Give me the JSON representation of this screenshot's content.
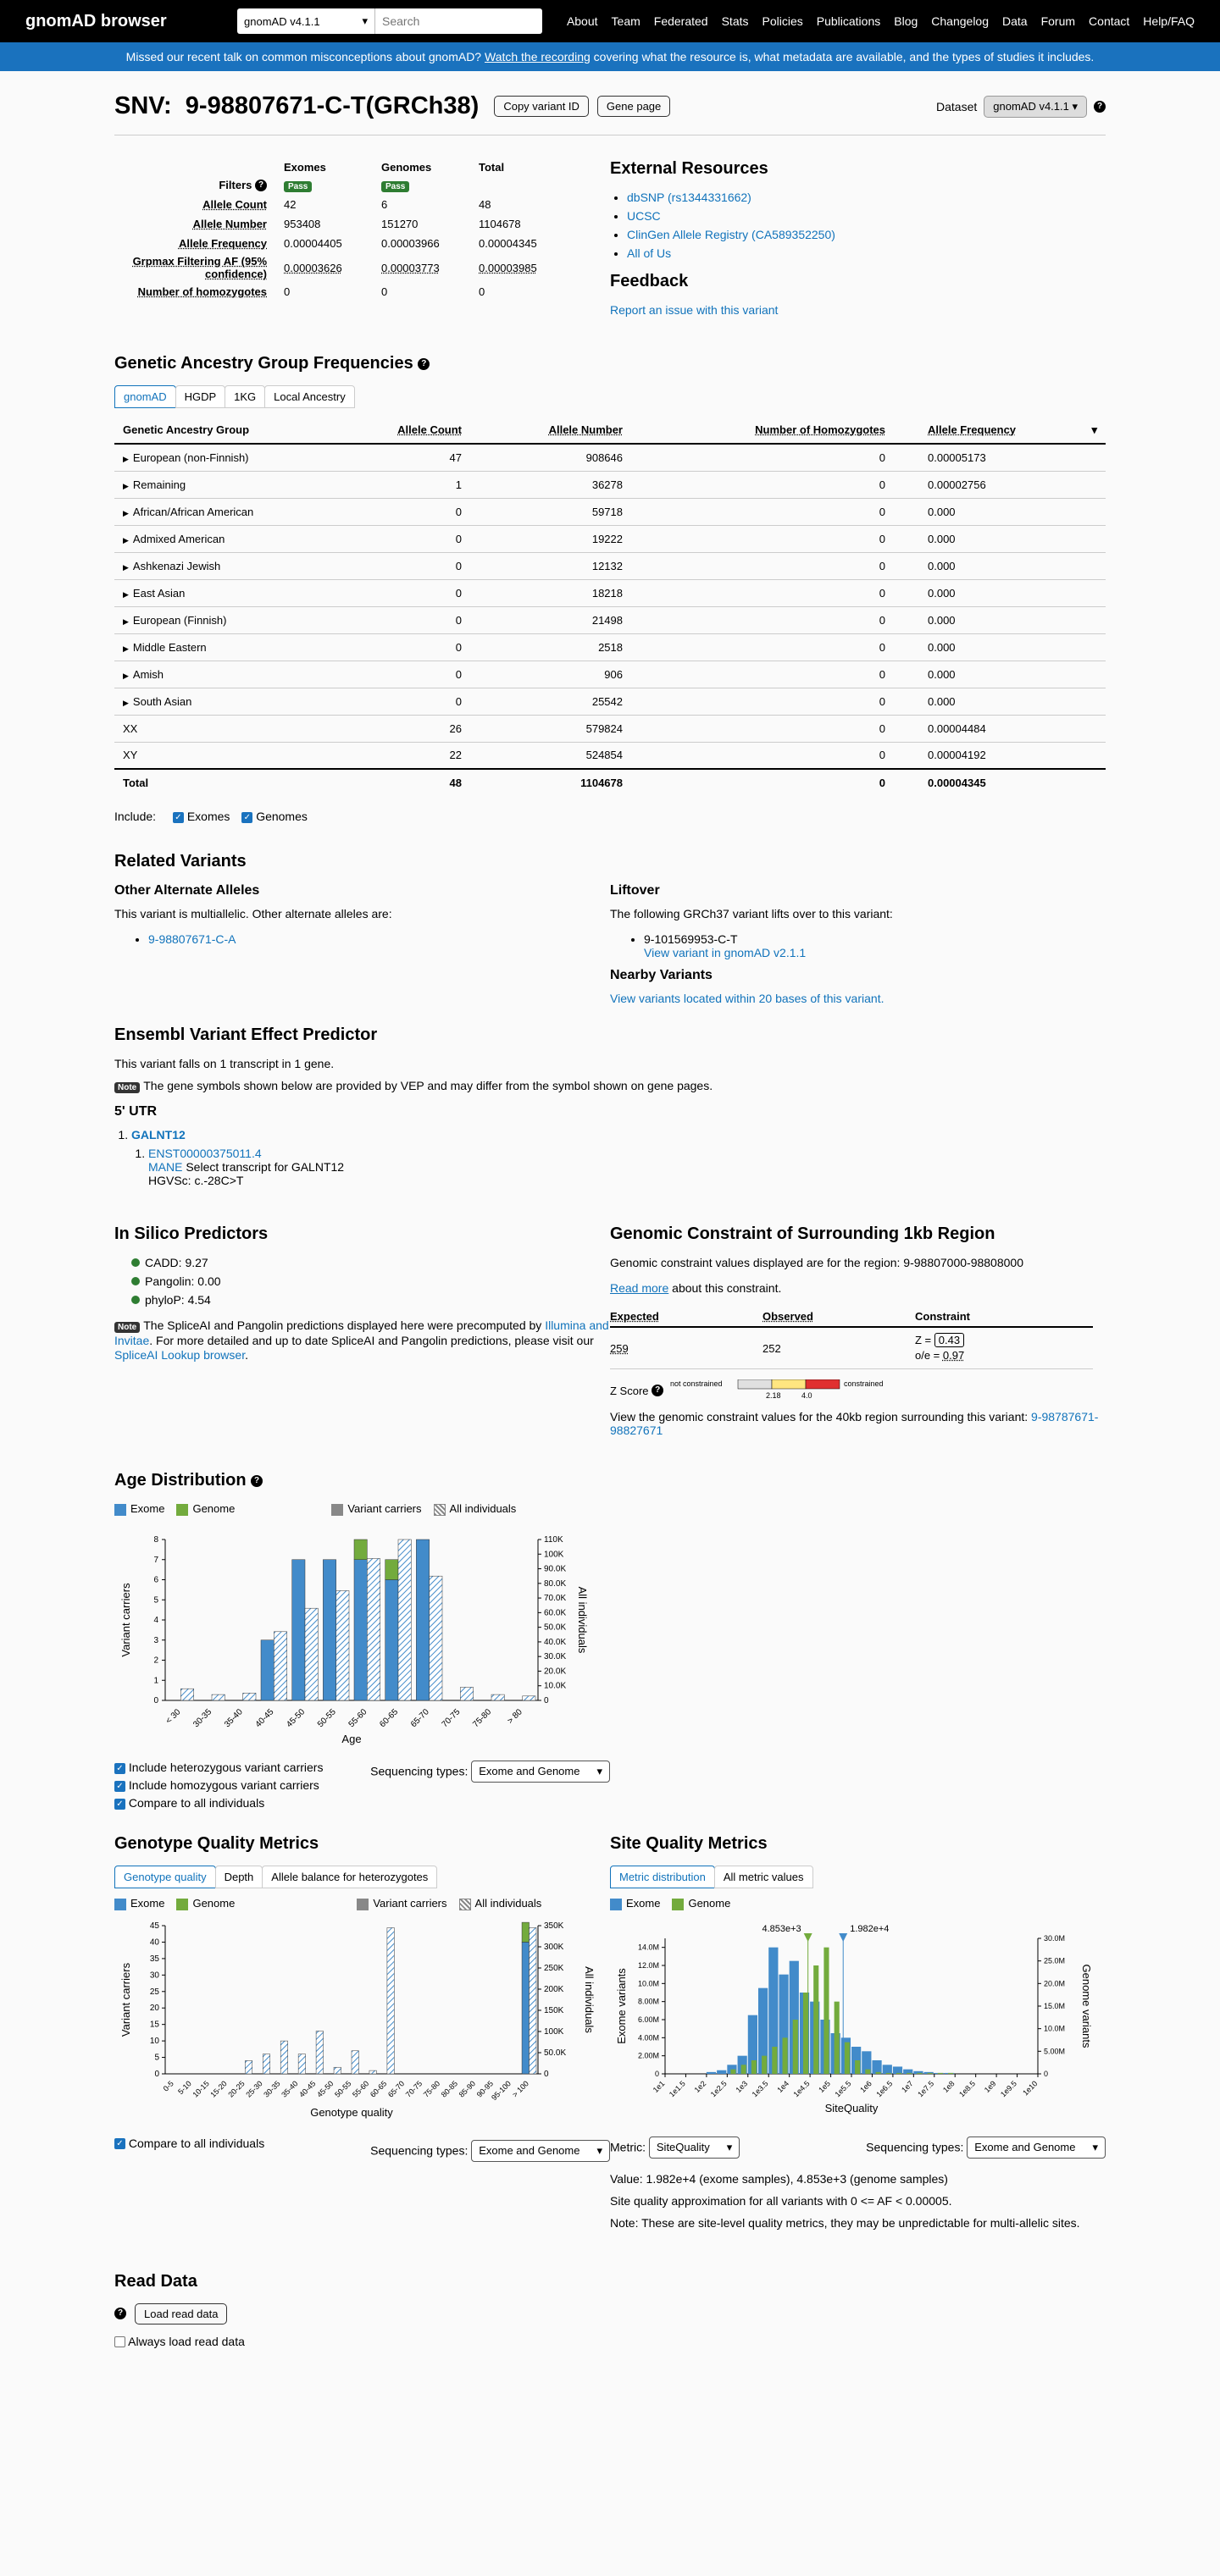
{
  "nav": {
    "brand": "gnomAD browser",
    "dataset": "gnomAD v4.1.1",
    "search_placeholder": "Search",
    "links": [
      "About",
      "Team",
      "Federated",
      "Stats",
      "Policies",
      "Publications",
      "Blog",
      "Changelog",
      "Data",
      "Forum",
      "Contact",
      "Help/FAQ"
    ]
  },
  "banner": {
    "pre": "Missed our recent talk on common misconceptions about gnomAD?",
    "link": "Watch the recording",
    "post": "covering what the resource is, what metadata are available, and the types of studies it includes."
  },
  "header": {
    "title": "SNV:  9-98807671-C-T(GRCh38)",
    "copy_btn": "Copy variant ID",
    "gene_btn": "Gene page",
    "dataset_label": "Dataset",
    "dataset_value": "gnomAD v4.1.1"
  },
  "variant_table": {
    "cols": [
      "Exomes",
      "Genomes",
      "Total"
    ],
    "rows": [
      {
        "label": "Allele Count",
        "vals": [
          "42",
          "6",
          "48"
        ]
      },
      {
        "label": "Allele Number",
        "vals": [
          "953408",
          "151270",
          "1104678"
        ]
      },
      {
        "label": "Allele Frequency",
        "vals": [
          "0.00004405",
          "0.00003966",
          "0.00004345"
        ]
      },
      {
        "label": "Grpmax Filtering AF (95% confidence)",
        "vals": [
          "0.00003626",
          "0.00003773",
          "0.00003985"
        ]
      },
      {
        "label": "Number of homozygotes",
        "vals": [
          "0",
          "0",
          "0"
        ]
      }
    ],
    "filters_label": "Filters",
    "pass": "Pass"
  },
  "external": {
    "title": "External Resources",
    "links": [
      "dbSNP (rs1344331662)",
      "UCSC",
      "ClinGen Allele Registry (CA589352250)",
      "All of Us"
    ]
  },
  "feedback": {
    "title": "Feedback",
    "link": "Report an issue with this variant"
  },
  "ancestry": {
    "title": "Genetic Ancestry Group Frequencies",
    "tabs": [
      "gnomAD",
      "HGDP",
      "1KG",
      "Local Ancestry"
    ],
    "cols": [
      "Genetic Ancestry Group",
      "Allele Count",
      "Allele Number",
      "Number of Homozygotes",
      "Allele Frequency"
    ],
    "rows": [
      [
        "European (non-Finnish)",
        "47",
        "908646",
        "0",
        "0.00005173"
      ],
      [
        "Remaining",
        "1",
        "36278",
        "0",
        "0.00002756"
      ],
      [
        "African/African American",
        "0",
        "59718",
        "0",
        "0.000"
      ],
      [
        "Admixed American",
        "0",
        "19222",
        "0",
        "0.000"
      ],
      [
        "Ashkenazi Jewish",
        "0",
        "12132",
        "0",
        "0.000"
      ],
      [
        "East Asian",
        "0",
        "18218",
        "0",
        "0.000"
      ],
      [
        "European (Finnish)",
        "0",
        "21498",
        "0",
        "0.000"
      ],
      [
        "Middle Eastern",
        "0",
        "2518",
        "0",
        "0.000"
      ],
      [
        "Amish",
        "0",
        "906",
        "0",
        "0.000"
      ],
      [
        "South Asian",
        "0",
        "25542",
        "0",
        "0.000"
      ]
    ],
    "sex_rows": [
      [
        "XX",
        "26",
        "579824",
        "0",
        "0.00004484"
      ],
      [
        "XY",
        "22",
        "524854",
        "0",
        "0.00004192"
      ]
    ],
    "total": [
      "Total",
      "48",
      "1104678",
      "0",
      "0.00004345"
    ],
    "include_label": "Include:",
    "include": [
      "Exomes",
      "Genomes"
    ]
  },
  "related": {
    "title": "Related Variants",
    "other_title": "Other Alternate Alleles",
    "other_text": "This variant is multiallelic. Other alternate alleles are:",
    "other_link": "9-98807671-C-A",
    "liftover_title": "Liftover",
    "liftover_text": "The following GRCh37 variant lifts over to this variant:",
    "liftover_variant": "9-101569953-C-T",
    "liftover_link": "View variant in gnomAD v2.1.1",
    "nearby_title": "Nearby Variants",
    "nearby_link": "View variants located within 20 bases of this variant."
  },
  "vep": {
    "title": "Ensembl Variant Effect Predictor",
    "text": "This variant falls on 1 transcript in 1 gene.",
    "note_badge": "Note",
    "note": "The gene symbols shown below are provided by VEP and may differ from the symbol shown on gene pages.",
    "consequence": "5' UTR",
    "gene": "GALNT12",
    "transcript": "ENST00000375011.4",
    "mane": "MANE",
    "mane_text": "Select transcript for GALNT12",
    "hgvs": "HGVSc: c.-28C>T"
  },
  "insilico": {
    "title": "In Silico Predictors",
    "items": [
      "CADD: 9.27",
      "Pangolin: 0.00",
      "phyloP: 4.54"
    ],
    "note_badge": "Note",
    "note_pre": "The SpliceAI and Pangolin predictions displayed here were precomputed by",
    "note_link1": "Illumina and Invitae",
    "note_mid": ". For more detailed and up to date SpliceAI and Pangolin predictions, please visit our",
    "note_link2": "SpliceAI Lookup browser",
    "note_end": "."
  },
  "constraint": {
    "title": "Genomic Constraint of Surrounding 1kb Region",
    "text": "Genomic constraint values displayed are for the region: 9-98807000-98808000",
    "readmore": "Read more",
    "readmore_tail": "about this constraint.",
    "cols": [
      "Expected",
      "Observed",
      "Constraint"
    ],
    "expected": "259",
    "observed": "252",
    "z_label": "Z =",
    "z": "0.43",
    "oe_label": "o/e =",
    "oe": "0.97",
    "zscore_label": "Z Score",
    "not_constrained": "not constrained",
    "constrained": "constrained",
    "tick1": "2.18",
    "tick2": "4.0",
    "view_text": "View the genomic constraint values for the 40kb region surrounding this variant:",
    "view_link": "9-98787671-98827671"
  },
  "age": {
    "title": "Age Distribution",
    "legend": [
      "Exome",
      "Genome",
      "Variant carriers",
      "All individuals"
    ],
    "xlabel": "Age",
    "ylabel_left": "Variant carriers",
    "ylabel_right": "All individuals",
    "checks": [
      "Include heterozygous variant carriers",
      "Include homozygous variant carriers",
      "Compare to all individuals"
    ],
    "seq_label": "Sequencing types:",
    "seq_value": "Exome and Genome"
  },
  "gq": {
    "title": "Genotype Quality Metrics",
    "tabs": [
      "Genotype quality",
      "Depth",
      "Allele balance for heterozygotes"
    ],
    "legend": [
      "Exome",
      "Genome",
      "Variant carriers",
      "All individuals"
    ],
    "xlabel": "Genotype quality",
    "ylabel": "Variant carriers",
    "ylabel_right": "All individuals",
    "check": "Compare to all individuals",
    "seq_label": "Sequencing types:",
    "seq_value": "Exome and Genome"
  },
  "sq": {
    "title": "Site Quality Metrics",
    "tabs": [
      "Metric distribution",
      "All metric values"
    ],
    "legend": [
      "Exome",
      "Genome"
    ],
    "xlabel": "SiteQuality",
    "ylabel_left": "Exome variants",
    "ylabel_right": "Genome variants",
    "marker1": "4.853e+3",
    "marker2": "1.982e+4",
    "metric_label": "Metric:",
    "metric_value": "SiteQuality",
    "seq_label": "Sequencing types:",
    "seq_value": "Exome and Genome",
    "value_text": "Value: 1.982e+4 (exome samples), 4.853e+3 (genome samples)",
    "approx_text": "Site quality approximation for all variants with 0 <= AF < 0.00005.",
    "note_text": "Note: These are site-level quality metrics, they may be unpredictable for multi-allelic sites."
  },
  "read": {
    "title": "Read Data",
    "button": "Load read data",
    "always": "Always load read data"
  },
  "chart_data": [
    {
      "type": "bar",
      "title": "Age Distribution",
      "categories": [
        "< 30",
        "30-35",
        "35-40",
        "40-45",
        "45-50",
        "50-55",
        "55-60",
        "60-65",
        "65-70",
        "70-75",
        "75-80",
        "> 80"
      ],
      "series": [
        {
          "name": "Exome",
          "values": [
            0,
            0,
            0,
            3,
            7,
            7,
            7,
            6,
            8,
            0,
            0,
            0
          ]
        },
        {
          "name": "Genome",
          "values": [
            0,
            0,
            0,
            0,
            0,
            0,
            1,
            1,
            0,
            0,
            0,
            0
          ]
        },
        {
          "name": "All individuals",
          "values": [
            8000,
            4000,
            5000,
            47000,
            63000,
            75000,
            97000,
            110000,
            85000,
            9000,
            4000,
            3000
          ]
        }
      ],
      "ylim": [
        0,
        8
      ],
      "ylim_right": [
        0,
        110000
      ],
      "yticks": [
        0,
        1,
        2,
        3,
        4,
        5,
        6,
        7,
        8
      ],
      "yticks_right": [
        "0",
        "10.0K",
        "20.0K",
        "30.0K",
        "40.0K",
        "50.0K",
        "60.0K",
        "70.0K",
        "80.0K",
        "90.0K",
        "100K",
        "110K"
      ]
    },
    {
      "type": "bar",
      "title": "Genotype Quality",
      "categories": [
        "0-5",
        "5-10",
        "10-15",
        "15-20",
        "20-25",
        "25-30",
        "30-35",
        "35-40",
        "40-45",
        "45-50",
        "50-55",
        "55-60",
        "60-65",
        "65-70",
        "70-75",
        "75-80",
        "80-85",
        "85-90",
        "90-95",
        "95-100",
        "> 100"
      ],
      "series": [
        {
          "name": "Exome",
          "values": [
            0,
            0,
            0,
            0,
            0,
            0,
            0,
            0,
            0,
            0,
            0,
            0,
            0,
            0,
            0,
            0,
            0,
            0,
            0,
            0,
            40
          ]
        },
        {
          "name": "Genome",
          "values": [
            0,
            0,
            0,
            0,
            0,
            0,
            0,
            0,
            0,
            0,
            0,
            0,
            0,
            0,
            0,
            0,
            0,
            0,
            0,
            0,
            6
          ]
        },
        {
          "name": "All individuals",
          "values": [
            0,
            0,
            0,
            0,
            4,
            6,
            10,
            6,
            13,
            2,
            7,
            1,
            345,
            0,
            0,
            0,
            0,
            0,
            0,
            0,
            345
          ]
        }
      ],
      "ylim": [
        0,
        45
      ],
      "ylim_right": [
        0,
        350000
      ],
      "yticks": [
        0,
        5,
        10,
        15,
        20,
        25,
        30,
        35,
        40,
        45
      ],
      "yticks_right": [
        "0",
        "50.0K",
        "100K",
        "150K",
        "200K",
        "250K",
        "300K",
        "350K"
      ]
    },
    {
      "type": "bar",
      "title": "SiteQuality",
      "x_ticks": [
        "1e1",
        "1e1.5",
        "1e2",
        "1e2.5",
        "1e3",
        "1e3.5",
        "1e4",
        "1e4.5",
        "1e5",
        "1e5.5",
        "1e6",
        "1e6.5",
        "1e7",
        "1e7.5",
        "1e8",
        "1e8.5",
        "1e9",
        "1e9.5",
        "1e10"
      ],
      "series": [
        {
          "name": "Exome",
          "values": [
            0.2,
            0.4,
            1,
            2,
            6.5,
            9.5,
            14,
            11,
            12.5,
            9,
            8,
            6,
            4.5,
            4,
            3,
            2.5,
            1.5,
            1,
            0.8,
            0.5,
            0.3,
            0.2,
            0.1,
            0.1
          ]
        },
        {
          "name": "Genome",
          "values": [
            0,
            0,
            0.5,
            1,
            1.5,
            2,
            3,
            4,
            6,
            9,
            12,
            14,
            8,
            3.5,
            1.5,
            0.5,
            0.2,
            0.1,
            0.1,
            0.1,
            0.1,
            0.1,
            0.1,
            0.1
          ]
        }
      ],
      "ylim": [
        0,
        15000000
      ],
      "yticks": [
        "0",
        "2.00M",
        "4.00M",
        "6.00M",
        "8.00M",
        "10.0M",
        "12.0M",
        "14.0M"
      ],
      "ylim_right": [
        0,
        30000000
      ],
      "yticks_right": [
        "0",
        "5.00M",
        "10.0M",
        "15.0M",
        "20.0M",
        "25.0M",
        "30.0M"
      ]
    }
  ]
}
